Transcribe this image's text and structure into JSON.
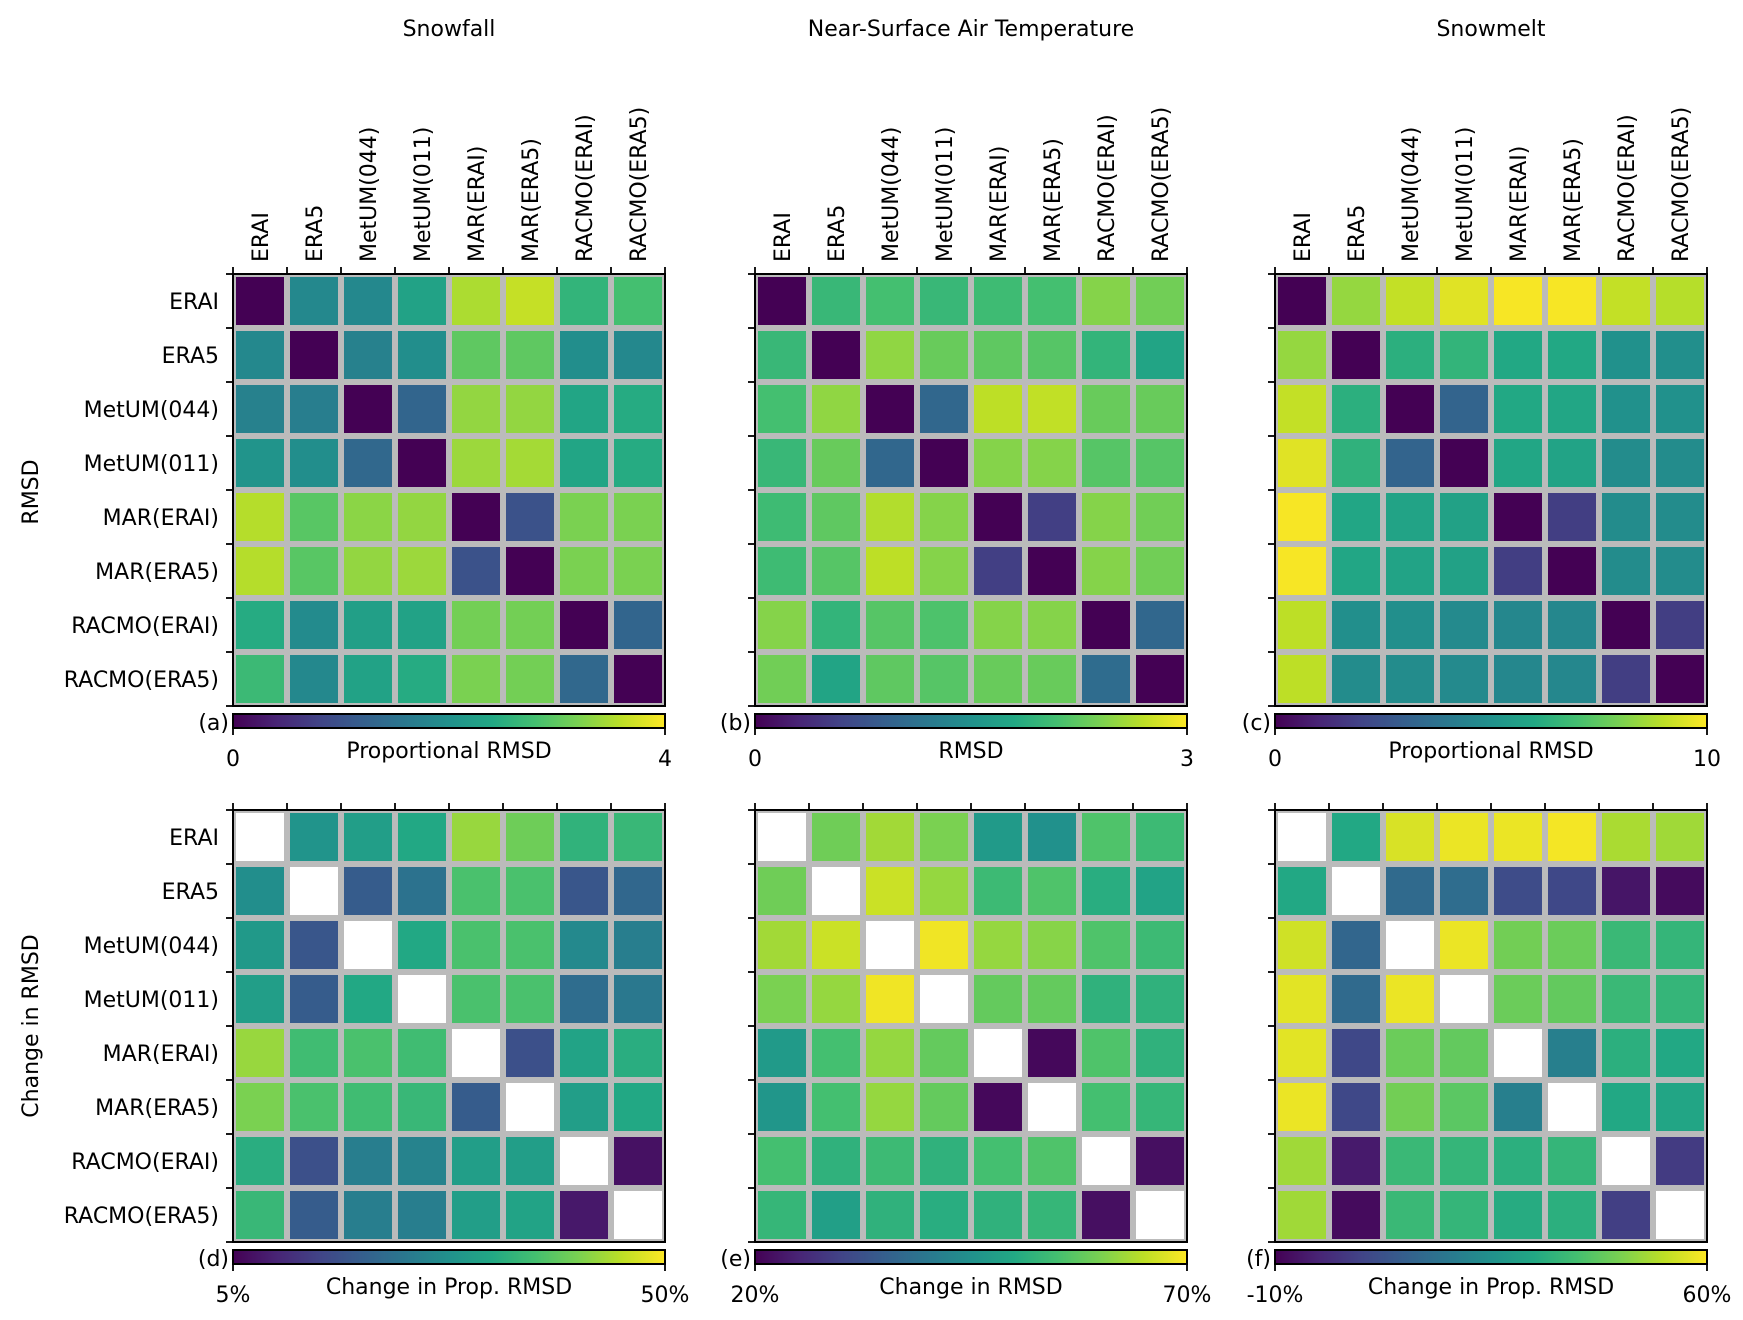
{
  "models": [
    "ERAI",
    "ERA5",
    "MetUM(044)",
    "MetUM(011)",
    "MAR(ERAI)",
    "MAR(ERA5)",
    "RACMO(ERAI)",
    "RACMO(ERA5)"
  ],
  "row_labels": {
    "top": "RMSD",
    "bottom": "Change in RMSD"
  },
  "colormap": [
    "#440154",
    "#482475",
    "#414487",
    "#355f8d",
    "#2a788e",
    "#21918c",
    "#22a884",
    "#44bf70",
    "#7ad151",
    "#bddf26",
    "#fde725"
  ],
  "chart_data": [
    {
      "type": "heatmap",
      "panel": "(a)",
      "title": "Snowfall",
      "colorbar_label": "Proportional RMSD",
      "vmin": 0,
      "vmax": 4,
      "vmin_label": "0",
      "vmax_label": "4",
      "show_row_labels": true,
      "values": [
        [
          0.0,
          1.85,
          1.85,
          2.3,
          3.5,
          3.65,
          2.6,
          2.8
        ],
        [
          1.85,
          0.0,
          1.75,
          1.95,
          3.0,
          3.0,
          1.95,
          1.85
        ],
        [
          1.75,
          1.7,
          0.0,
          1.3,
          3.35,
          3.35,
          2.35,
          2.45
        ],
        [
          2.05,
          1.95,
          1.35,
          0.0,
          3.4,
          3.45,
          2.35,
          2.45
        ],
        [
          3.55,
          2.95,
          3.3,
          3.35,
          0.0,
          1.0,
          3.2,
          3.2
        ],
        [
          3.55,
          2.95,
          3.35,
          3.4,
          1.0,
          0.0,
          3.2,
          3.2
        ],
        [
          2.45,
          1.9,
          2.25,
          2.3,
          3.15,
          3.15,
          0.0,
          1.3
        ],
        [
          2.7,
          1.85,
          2.3,
          2.45,
          3.2,
          3.15,
          1.35,
          0.0
        ]
      ]
    },
    {
      "type": "heatmap",
      "panel": "(b)",
      "title": "Near-Surface Air Temperature",
      "colorbar_label": "RMSD",
      "vmin": 0,
      "vmax": 3,
      "vmin_label": "0",
      "vmax_label": "3",
      "show_row_labels": false,
      "values": [
        [
          0.0,
          2.0,
          2.1,
          2.0,
          2.05,
          2.1,
          2.45,
          2.35
        ],
        [
          2.0,
          0.0,
          2.5,
          2.3,
          2.25,
          2.2,
          1.95,
          1.75
        ],
        [
          2.1,
          2.5,
          0.0,
          1.0,
          2.7,
          2.72,
          2.3,
          2.3
        ],
        [
          2.0,
          2.3,
          1.0,
          0.0,
          2.45,
          2.45,
          2.2,
          2.2
        ],
        [
          2.05,
          2.25,
          2.65,
          2.45,
          0.0,
          0.55,
          2.45,
          2.35
        ],
        [
          2.05,
          2.2,
          2.7,
          2.45,
          0.55,
          0.0,
          2.45,
          2.35
        ],
        [
          2.45,
          1.95,
          2.2,
          2.15,
          2.45,
          2.45,
          0.0,
          1.0
        ],
        [
          2.35,
          1.75,
          2.25,
          2.2,
          2.3,
          2.3,
          1.05,
          0.0
        ]
      ]
    },
    {
      "type": "heatmap",
      "panel": "(c)",
      "title": "Snowmelt",
      "colorbar_label": "Proportional RMSD",
      "vmin": 0,
      "vmax": 10,
      "vmin_label": "0",
      "vmax_label": "10",
      "show_row_labels": false,
      "values": [
        [
          0.0,
          8.4,
          9.1,
          9.55,
          9.9,
          9.9,
          9.1,
          8.9
        ],
        [
          8.4,
          0.0,
          6.3,
          6.5,
          6.0,
          6.0,
          5.0,
          4.9
        ],
        [
          9.1,
          6.3,
          0.0,
          3.2,
          6.0,
          5.9,
          5.0,
          5.0
        ],
        [
          9.55,
          6.4,
          3.2,
          0.0,
          5.9,
          5.8,
          4.8,
          4.8
        ],
        [
          9.9,
          5.9,
          5.8,
          5.7,
          0.0,
          1.8,
          4.8,
          4.8
        ],
        [
          9.9,
          5.9,
          5.8,
          5.7,
          1.8,
          0.0,
          4.8,
          4.8
        ],
        [
          9.0,
          4.9,
          4.9,
          4.7,
          4.6,
          4.6,
          0.0,
          1.8
        ],
        [
          9.0,
          4.8,
          4.8,
          4.7,
          4.6,
          4.6,
          1.8,
          0.0
        ]
      ]
    },
    {
      "type": "heatmap",
      "panel": "(d)",
      "title": "",
      "colorbar_label": "Change in Prop. RMSD",
      "vmin": 5,
      "vmax": 50,
      "vmin_label": "5%",
      "vmax_label": "50%",
      "show_row_labels": true,
      "values": [
        [
          null,
          28,
          30,
          32,
          43,
          40,
          34,
          35
        ],
        [
          27,
          null,
          18,
          22,
          37,
          37,
          17,
          20
        ],
        [
          29,
          17,
          null,
          32,
          37,
          37,
          26,
          24
        ],
        [
          30,
          18,
          32,
          null,
          37,
          37,
          21,
          23
        ],
        [
          43,
          36,
          37,
          36,
          null,
          16,
          31,
          33
        ],
        [
          41,
          37,
          36,
          35,
          18,
          null,
          30,
          32
        ],
        [
          33,
          16,
          24,
          25,
          30,
          30,
          null,
          7
        ],
        [
          35,
          18,
          24,
          24,
          30,
          31,
          8,
          null
        ]
      ]
    },
    {
      "type": "heatmap",
      "panel": "(e)",
      "title": "",
      "colorbar_label": "Change in RMSD",
      "vmin": 20,
      "vmax": 70,
      "vmin_label": "20%",
      "vmax_label": "70%",
      "show_row_labels": false,
      "values": [
        [
          null,
          59,
          63,
          60,
          47,
          45,
          56,
          54
        ],
        [
          59,
          null,
          66,
          62,
          54,
          56,
          51,
          49
        ],
        [
          63,
          66,
          null,
          69,
          62,
          61,
          56,
          54
        ],
        [
          60,
          62,
          69,
          null,
          58,
          58,
          52,
          52
        ],
        [
          47,
          55,
          62,
          58,
          null,
          21,
          56,
          52
        ],
        [
          46,
          55,
          62,
          58,
          21,
          null,
          55,
          53
        ],
        [
          55,
          52,
          54,
          52,
          55,
          56,
          null,
          22
        ],
        [
          53,
          48,
          52,
          51,
          52,
          53,
          22,
          null
        ]
      ]
    },
    {
      "type": "heatmap",
      "panel": "(f)",
      "title": "",
      "colorbar_label": "Change in Prop. RMSD",
      "vmin": -10,
      "vmax": 60,
      "vmin_label": "-10%",
      "vmax_label": "60%",
      "show_row_labels": false,
      "values": [
        [
          null,
          32,
          56,
          58,
          58,
          59,
          51,
          50
        ],
        [
          32,
          null,
          14,
          15,
          6,
          5,
          -6,
          -8
        ],
        [
          55,
          13,
          null,
          58,
          45,
          44,
          37,
          36
        ],
        [
          57,
          14,
          58,
          null,
          44,
          43,
          37,
          36
        ],
        [
          57,
          5,
          44,
          43,
          null,
          20,
          34,
          32
        ],
        [
          58,
          5,
          45,
          42,
          20,
          null,
          32,
          31
        ],
        [
          50,
          -5,
          37,
          36,
          34,
          36,
          null,
          2
        ],
        [
          50,
          -8,
          37,
          36,
          33,
          34,
          3,
          null
        ]
      ]
    }
  ]
}
